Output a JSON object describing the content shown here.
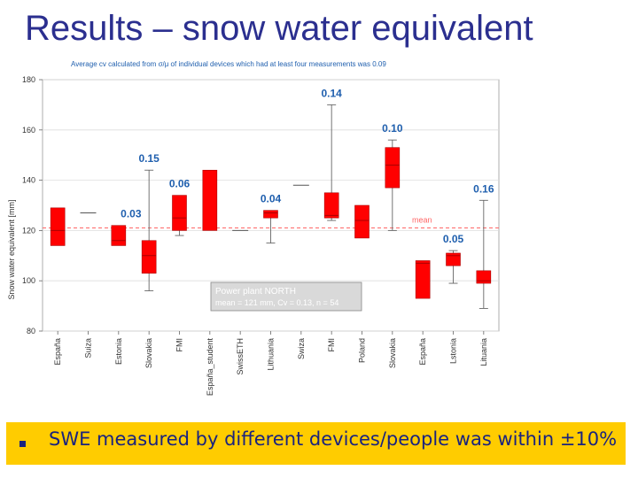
{
  "slide": {
    "title": "Results – snow water equivalent",
    "bullet": "SWE measured by different devices/people was within ±10%"
  },
  "colors": {
    "title": "#2b2f8f",
    "box_fill": "#ff0000",
    "annotation": "#1f5fae",
    "mean_line": "#ff6666",
    "bullet_bg": "#ffcc00"
  },
  "chart_data": {
    "type": "box",
    "top_note": "Average cv calculated from σ/μ of individual devices which had at least four measurements was 0.09",
    "ylabel": "Snow water equivalent [mm]",
    "ylim": [
      80,
      180
    ],
    "yticks": [
      80,
      100,
      120,
      140,
      160,
      180
    ],
    "mean_value": 121,
    "mean_label": "mean",
    "legend_box": {
      "line1": "Power plant NORTH",
      "line2": "mean = 121 mm, Cv = 0.13, n = 54"
    },
    "categories": [
      "España",
      "Suiza",
      "Estonia",
      "Slovakia",
      "FMI",
      "España_student",
      "SwissETH",
      "Lithuania",
      "Swiza",
      "FMI",
      "Poland",
      "Slovakia",
      "España",
      "Lstonia",
      "Lituania"
    ],
    "boxes": [
      {
        "q1": 114,
        "median": 120,
        "q3": 129,
        "min": null,
        "max": null,
        "cv": ""
      },
      {
        "q1": null,
        "median": 127,
        "q3": null,
        "min": null,
        "max": null,
        "cv": ""
      },
      {
        "q1": 114,
        "median": 116,
        "q3": 122,
        "min": null,
        "max": null,
        "cv": "0.03"
      },
      {
        "q1": 103,
        "median": 110,
        "q3": 116,
        "min": 96,
        "max": 144,
        "cv": "0.15"
      },
      {
        "q1": 120,
        "median": 125,
        "q3": 134,
        "min": 118,
        "max": null,
        "cv": "0.06"
      },
      {
        "q1": 120,
        "median": null,
        "q3": 144,
        "min": null,
        "max": null,
        "cv": ""
      },
      {
        "q1": null,
        "median": 120,
        "q3": null,
        "min": null,
        "max": null,
        "cv": ""
      },
      {
        "q1": 125,
        "median": 127,
        "q3": 128,
        "min": 115,
        "max": null,
        "cv": "0.04"
      },
      {
        "q1": null,
        "median": 138,
        "q3": null,
        "min": null,
        "max": null,
        "cv": ""
      },
      {
        "q1": 125,
        "median": 126,
        "q3": 135,
        "min": 124,
        "max": 170,
        "cv": "0.14"
      },
      {
        "q1": 117,
        "median": 124,
        "q3": 130,
        "min": null,
        "max": null,
        "cv": ""
      },
      {
        "q1": 137,
        "median": 146,
        "q3": 153,
        "min": 120,
        "max": 156,
        "cv": "0.10"
      },
      {
        "q1": 93,
        "median": 107,
        "q3": 108,
        "min": null,
        "max": null,
        "cv": ""
      },
      {
        "q1": 106,
        "median": 110,
        "q3": 111,
        "min": 99,
        "max": 112,
        "cv": "0.05"
      },
      {
        "q1": 99,
        "median": 100,
        "q3": 104,
        "min": 89,
        "max": 132,
        "cv": "0.16"
      }
    ]
  }
}
